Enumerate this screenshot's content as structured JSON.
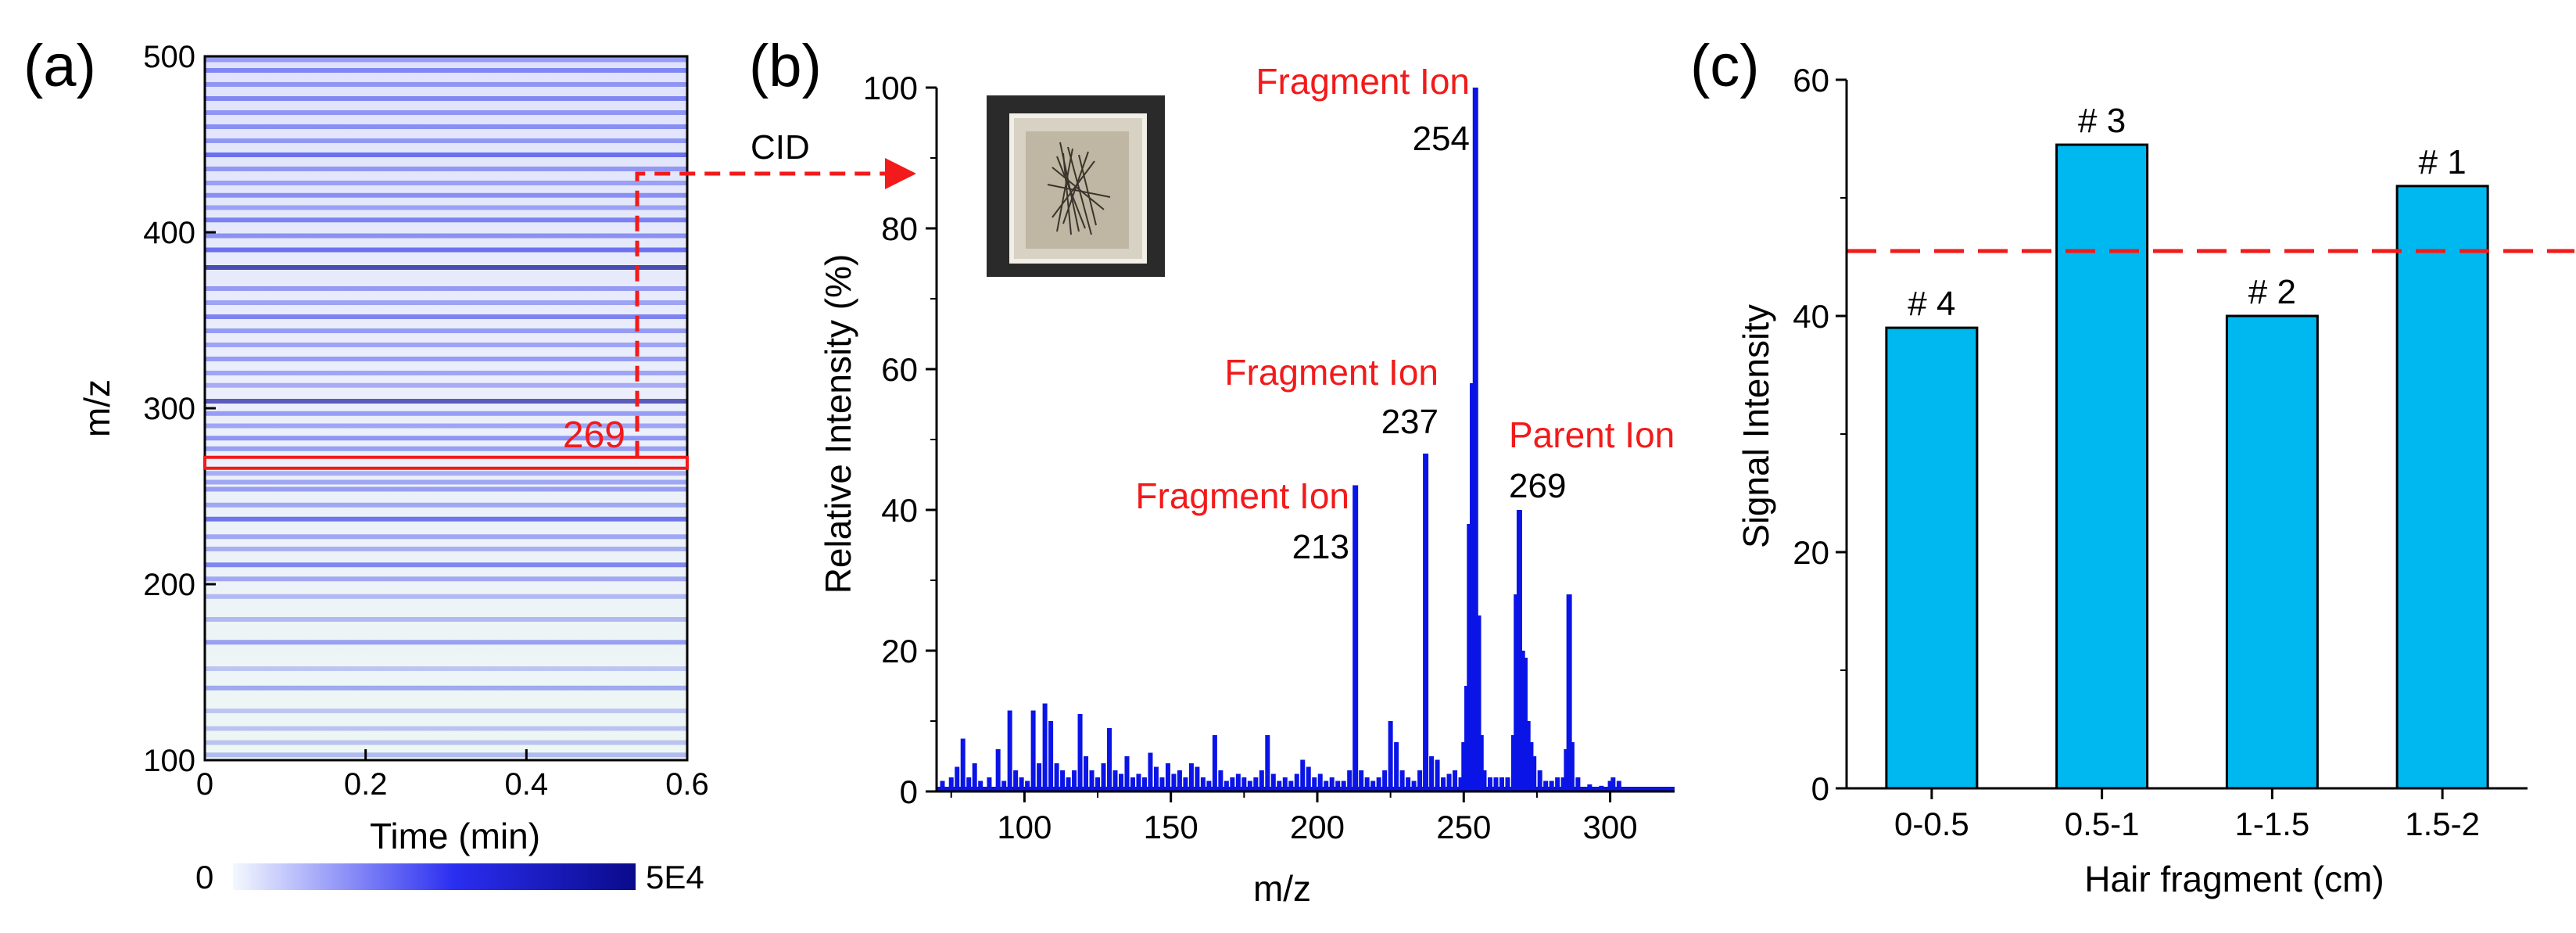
{
  "colors": {
    "axis": "#000000",
    "bar_fill": "#00b8f0",
    "spectrum": "#0a14e6",
    "annotation_red": "#f21a1a",
    "heat_low": "#eef6f4",
    "heat_high": "#0a0a96"
  },
  "chart_data": [
    {
      "panel": "(a)",
      "type": "heatmap",
      "xlabel": "Time (min)",
      "ylabel": "m/z",
      "xlim": [
        0,
        0.6
      ],
      "ylim": [
        100,
        500
      ],
      "xticks": [
        "0",
        "0.2",
        "0.4",
        "0.6"
      ],
      "yticks": [
        "100",
        "200",
        "300",
        "400",
        "500"
      ],
      "colorbar": {
        "min_label": "0",
        "max_label": "5E4",
        "min": 0,
        "max": 50000
      },
      "highlight": {
        "label": "269",
        "mz": 269
      },
      "arrow_label": "CID",
      "bands": [
        {
          "mz": 103,
          "i": 0.35
        },
        {
          "mz": 110,
          "i": 0.3
        },
        {
          "mz": 118,
          "i": 0.3
        },
        {
          "mz": 128,
          "i": 0.28
        },
        {
          "mz": 141,
          "i": 0.45
        },
        {
          "mz": 152,
          "i": 0.28
        },
        {
          "mz": 167,
          "i": 0.5
        },
        {
          "mz": 180,
          "i": 0.35
        },
        {
          "mz": 193,
          "i": 0.35
        },
        {
          "mz": 203,
          "i": 0.45
        },
        {
          "mz": 211,
          "i": 0.65
        },
        {
          "mz": 220,
          "i": 0.4
        },
        {
          "mz": 227,
          "i": 0.45
        },
        {
          "mz": 237,
          "i": 0.75
        },
        {
          "mz": 245,
          "i": 0.45
        },
        {
          "mz": 254,
          "i": 0.5
        },
        {
          "mz": 258,
          "i": 0.45
        },
        {
          "mz": 263,
          "i": 0.4
        },
        {
          "mz": 277,
          "i": 0.5
        },
        {
          "mz": 283,
          "i": 0.55
        },
        {
          "mz": 290,
          "i": 0.45
        },
        {
          "mz": 297,
          "i": 0.5
        },
        {
          "mz": 304,
          "i": 0.85
        },
        {
          "mz": 313,
          "i": 0.4
        },
        {
          "mz": 320,
          "i": 0.45
        },
        {
          "mz": 328,
          "i": 0.5
        },
        {
          "mz": 336,
          "i": 0.45
        },
        {
          "mz": 344,
          "i": 0.5
        },
        {
          "mz": 352,
          "i": 0.65
        },
        {
          "mz": 360,
          "i": 0.45
        },
        {
          "mz": 368,
          "i": 0.5
        },
        {
          "mz": 380,
          "i": 0.95
        },
        {
          "mz": 390,
          "i": 0.75
        },
        {
          "mz": 398,
          "i": 0.55
        },
        {
          "mz": 407,
          "i": 0.65
        },
        {
          "mz": 414,
          "i": 0.45
        },
        {
          "mz": 421,
          "i": 0.55
        },
        {
          "mz": 428,
          "i": 0.45
        },
        {
          "mz": 436,
          "i": 0.5
        },
        {
          "mz": 444,
          "i": 0.75
        },
        {
          "mz": 452,
          "i": 0.5
        },
        {
          "mz": 460,
          "i": 0.55
        },
        {
          "mz": 468,
          "i": 0.5
        },
        {
          "mz": 476,
          "i": 0.6
        },
        {
          "mz": 484,
          "i": 0.5
        },
        {
          "mz": 492,
          "i": 0.6
        },
        {
          "mz": 498,
          "i": 0.45
        }
      ]
    },
    {
      "panel": "(b)",
      "type": "bar",
      "subtype": "mass-spectrum",
      "xlabel": "m/z",
      "ylabel": "Relative Intensity (%)",
      "xlim": [
        70,
        322
      ],
      "ylim": [
        0,
        100
      ],
      "xticks": [
        100,
        150,
        200,
        250,
        300
      ],
      "yticks": [
        0,
        20,
        40,
        60,
        80,
        100
      ],
      "annotations": [
        {
          "mz": 254,
          "value": 100,
          "title": "Fragment Ion",
          "label": "254"
        },
        {
          "mz": 237,
          "value": 48,
          "title": "Fragment Ion",
          "label": "237"
        },
        {
          "mz": 213,
          "value": 44,
          "title": "Fragment Ion",
          "label": "213"
        },
        {
          "mz": 269,
          "value": 40,
          "title": "Parent Ion",
          "label": "269"
        }
      ],
      "peaks": [
        [
          72,
          1.5
        ],
        [
          75,
          2
        ],
        [
          77,
          3.5
        ],
        [
          79,
          7.5
        ],
        [
          81,
          2
        ],
        [
          83,
          4
        ],
        [
          85,
          1.5
        ],
        [
          88,
          2
        ],
        [
          91,
          6
        ],
        [
          93,
          1.5
        ],
        [
          95,
          11.5
        ],
        [
          97,
          3
        ],
        [
          99,
          2
        ],
        [
          101,
          1.5
        ],
        [
          103,
          11.5
        ],
        [
          105,
          4
        ],
        [
          107,
          12.5
        ],
        [
          109,
          10
        ],
        [
          111,
          4
        ],
        [
          113,
          3
        ],
        [
          115,
          2
        ],
        [
          117,
          3
        ],
        [
          119,
          11
        ],
        [
          121,
          5
        ],
        [
          123,
          3
        ],
        [
          125,
          2
        ],
        [
          127,
          4
        ],
        [
          129,
          9
        ],
        [
          131,
          3
        ],
        [
          133,
          2.5
        ],
        [
          135,
          5
        ],
        [
          137,
          2
        ],
        [
          139,
          2.5
        ],
        [
          141,
          2
        ],
        [
          143,
          5.5
        ],
        [
          145,
          3.5
        ],
        [
          147,
          2
        ],
        [
          149,
          4
        ],
        [
          151,
          2.5
        ],
        [
          153,
          3
        ],
        [
          155,
          2
        ],
        [
          157,
          4
        ],
        [
          159,
          3.5
        ],
        [
          161,
          2
        ],
        [
          163,
          1.5
        ],
        [
          165,
          8
        ],
        [
          167,
          3
        ],
        [
          169,
          1.5
        ],
        [
          171,
          2
        ],
        [
          173,
          2.5
        ],
        [
          175,
          2
        ],
        [
          177,
          1.5
        ],
        [
          179,
          2
        ],
        [
          181,
          3
        ],
        [
          183,
          8
        ],
        [
          185,
          2.5
        ],
        [
          187,
          1.5
        ],
        [
          189,
          2
        ],
        [
          191,
          1.5
        ],
        [
          193,
          2.5
        ],
        [
          195,
          4.5
        ],
        [
          197,
          3.5
        ],
        [
          199,
          2
        ],
        [
          201,
          2.5
        ],
        [
          203,
          1.5
        ],
        [
          205,
          2
        ],
        [
          207,
          1.5
        ],
        [
          209,
          1.5
        ],
        [
          211,
          3
        ],
        [
          213,
          43.5
        ],
        [
          215,
          3
        ],
        [
          217,
          2
        ],
        [
          219,
          1.5
        ],
        [
          221,
          2
        ],
        [
          223,
          3
        ],
        [
          225,
          10
        ],
        [
          227,
          7
        ],
        [
          229,
          3
        ],
        [
          231,
          2
        ],
        [
          233,
          1.5
        ],
        [
          235,
          3
        ],
        [
          237,
          48
        ],
        [
          239,
          5
        ],
        [
          241,
          4.5
        ],
        [
          243,
          2
        ],
        [
          245,
          2.5
        ],
        [
          247,
          3
        ],
        [
          249,
          2
        ],
        [
          250,
          7
        ],
        [
          251,
          15
        ],
        [
          252,
          38
        ],
        [
          253,
          58
        ],
        [
          254,
          100
        ],
        [
          255,
          25
        ],
        [
          256,
          8
        ],
        [
          257,
          3
        ],
        [
          259,
          2
        ],
        [
          261,
          2
        ],
        [
          263,
          2
        ],
        [
          265,
          2
        ],
        [
          267,
          8
        ],
        [
          268,
          28
        ],
        [
          269,
          40
        ],
        [
          270,
          20
        ],
        [
          271,
          19
        ],
        [
          272,
          10
        ],
        [
          273,
          7
        ],
        [
          274,
          5
        ],
        [
          276,
          3
        ],
        [
          278,
          1.5
        ],
        [
          280,
          1.5
        ],
        [
          282,
          2
        ],
        [
          284,
          2
        ],
        [
          285,
          6
        ],
        [
          286,
          28
        ],
        [
          287,
          7
        ],
        [
          289,
          2
        ],
        [
          293,
          1
        ],
        [
          297,
          0.8
        ],
        [
          300,
          1.5
        ],
        [
          301,
          2
        ],
        [
          303,
          1.5
        ]
      ]
    },
    {
      "panel": "(c)",
      "type": "bar",
      "xlabel": "Hair fragment (cm)",
      "ylabel": "Signal Intensity",
      "ylim": [
        0,
        60
      ],
      "yticks": [
        0,
        20,
        40,
        60
      ],
      "categories": [
        "0-0.5",
        "0.5-1",
        "1-1.5",
        "1.5-2"
      ],
      "values": [
        39,
        54.5,
        40,
        51
      ],
      "bar_labels": [
        "# 4",
        "# 3",
        "# 2",
        "# 1"
      ],
      "threshold": 45.5
    }
  ]
}
